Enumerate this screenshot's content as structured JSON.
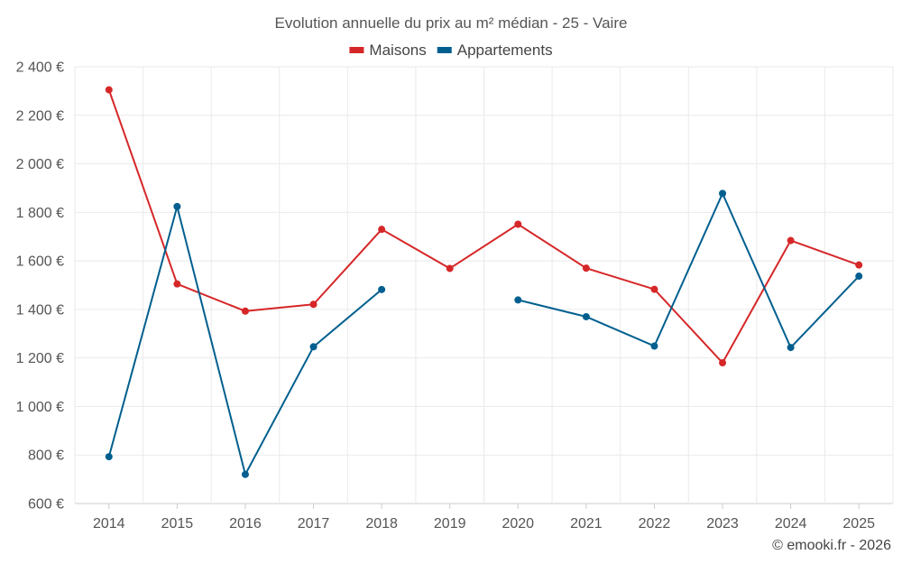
{
  "chart_data": {
    "type": "line",
    "title": "Evolution annuelle du prix au m² médian - 25 - Vaire",
    "categories": [
      "2014",
      "2015",
      "2016",
      "2017",
      "2018",
      "2019",
      "2020",
      "2021",
      "2022",
      "2023",
      "2024",
      "2025"
    ],
    "series": [
      {
        "name": "Maisons",
        "color": "#d62728",
        "values": [
          2305,
          1505,
          1393,
          1421,
          1730,
          1569,
          1751,
          1570,
          1483,
          1180,
          1684,
          1583
        ]
      },
      {
        "name": "Appartements",
        "color": "#005f8f",
        "values": [
          793,
          1824,
          720,
          1246,
          1482,
          null,
          1439,
          1370,
          1249,
          1878,
          1243,
          1537
        ]
      }
    ],
    "ylim": [
      600,
      2400
    ],
    "yticks": [
      600,
      800,
      1000,
      1200,
      1400,
      1600,
      1800,
      2000,
      2200,
      2400
    ],
    "ytick_labels": [
      "600 €",
      "800 €",
      "1 000 €",
      "1 200 €",
      "1 400 €",
      "1 600 €",
      "1 800 €",
      "2 000 €",
      "2 200 €",
      "2 400 €"
    ],
    "xlabel": "",
    "ylabel": "",
    "grid": true,
    "legend_position": "top-center"
  },
  "credit": "© emooki.fr - 2026"
}
